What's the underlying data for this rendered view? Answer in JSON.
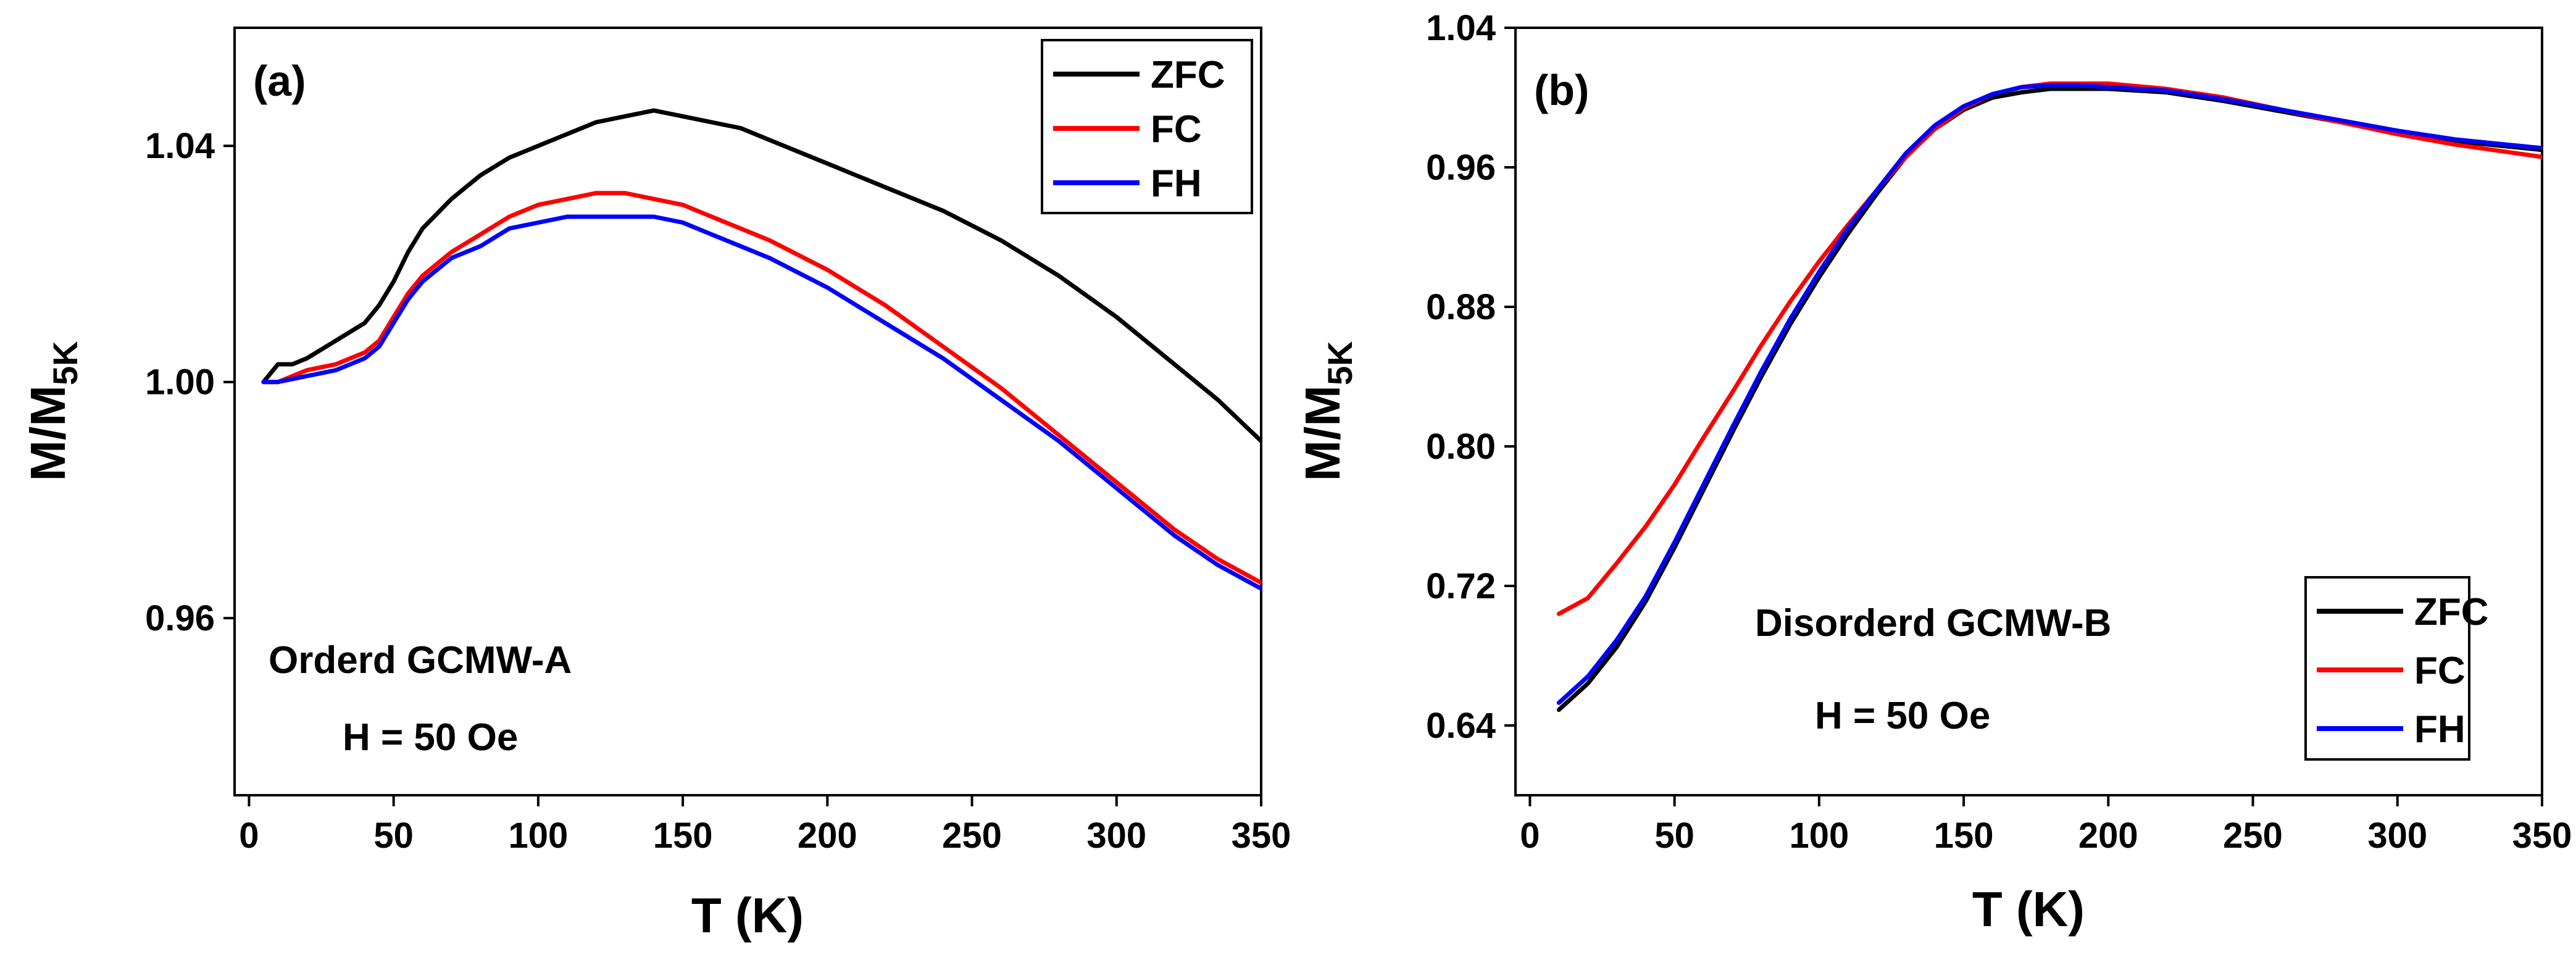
{
  "chart_data": [
    {
      "type": "line",
      "panel_label": "(a)",
      "annotations": [
        "Orderd GCMW-A",
        "H = 50 Oe"
      ],
      "xlabel": "T (K)",
      "ylabel_main": "M/M",
      "ylabel_sub": "5K",
      "xlim": [
        -5,
        350
      ],
      "ylim": [
        0.93,
        1.06
      ],
      "xticks": [
        0,
        50,
        100,
        150,
        200,
        250,
        300,
        350
      ],
      "yticks": [
        0.96,
        1.0,
        1.04
      ],
      "ytick_labels": [
        "0.96",
        "1.00",
        "1.04"
      ],
      "legend_position": "top-right",
      "series": [
        {
          "name": "ZFC",
          "color": "#000000",
          "x": [
            5,
            10,
            15,
            20,
            30,
            40,
            45,
            50,
            55,
            60,
            70,
            80,
            90,
            100,
            110,
            120,
            130,
            140,
            150,
            160,
            170,
            180,
            200,
            220,
            240,
            260,
            280,
            300,
            320,
            335,
            350
          ],
          "y": [
            1.0,
            1.003,
            1.003,
            1.004,
            1.007,
            1.01,
            1.013,
            1.017,
            1.022,
            1.026,
            1.031,
            1.035,
            1.038,
            1.04,
            1.042,
            1.044,
            1.045,
            1.046,
            1.045,
            1.044,
            1.043,
            1.041,
            1.037,
            1.033,
            1.029,
            1.024,
            1.018,
            1.011,
            1.003,
            0.997,
            0.99
          ]
        },
        {
          "name": "FC",
          "color": "#ff0000",
          "x": [
            5,
            10,
            20,
            30,
            40,
            45,
            50,
            55,
            60,
            70,
            80,
            90,
            100,
            110,
            120,
            130,
            140,
            150,
            160,
            180,
            200,
            220,
            240,
            260,
            280,
            300,
            320,
            335,
            350
          ],
          "y": [
            1.0,
            1.0,
            1.002,
            1.003,
            1.005,
            1.007,
            1.011,
            1.015,
            1.018,
            1.022,
            1.025,
            1.028,
            1.03,
            1.031,
            1.032,
            1.032,
            1.031,
            1.03,
            1.028,
            1.024,
            1.019,
            1.013,
            1.006,
            0.999,
            0.991,
            0.983,
            0.975,
            0.97,
            0.966
          ]
        },
        {
          "name": "FH",
          "color": "#0000ff",
          "x": [
            5,
            10,
            20,
            30,
            40,
            45,
            50,
            55,
            60,
            70,
            80,
            90,
            100,
            110,
            120,
            130,
            140,
            150,
            160,
            180,
            200,
            220,
            240,
            260,
            280,
            300,
            320,
            335,
            350
          ],
          "y": [
            1.0,
            1.0,
            1.001,
            1.002,
            1.004,
            1.006,
            1.01,
            1.014,
            1.017,
            1.021,
            1.023,
            1.026,
            1.027,
            1.028,
            1.028,
            1.028,
            1.028,
            1.027,
            1.025,
            1.021,
            1.016,
            1.01,
            1.004,
            0.997,
            0.99,
            0.982,
            0.974,
            0.969,
            0.965
          ]
        }
      ]
    },
    {
      "type": "line",
      "panel_label": "(b)",
      "annotations": [
        "Disorderd GCMW-B",
        "H = 50 Oe"
      ],
      "xlabel": "T (K)",
      "ylabel_main": "M/M",
      "ylabel_sub": "5K",
      "xlim": [
        -5,
        350
      ],
      "ylim": [
        0.6,
        1.04
      ],
      "xticks": [
        0,
        50,
        100,
        150,
        200,
        250,
        300,
        350
      ],
      "yticks": [
        0.64,
        0.72,
        0.8,
        0.88,
        0.96,
        1.04
      ],
      "ytick_labels": [
        "0.64",
        "0.72",
        "0.80",
        "0.88",
        "0.96",
        "1.04"
      ],
      "legend_position": "bottom-right",
      "series": [
        {
          "name": "ZFC",
          "color": "#000000",
          "x": [
            10,
            20,
            30,
            40,
            50,
            60,
            70,
            80,
            90,
            100,
            110,
            120,
            130,
            140,
            150,
            160,
            170,
            180,
            190,
            200,
            220,
            240,
            260,
            280,
            300,
            320,
            350
          ],
          "y": [
            0.649,
            0.664,
            0.685,
            0.711,
            0.742,
            0.775,
            0.808,
            0.84,
            0.87,
            0.897,
            0.922,
            0.945,
            0.966,
            0.982,
            0.993,
            1.0,
            1.003,
            1.005,
            1.005,
            1.005,
            1.003,
            0.998,
            0.992,
            0.986,
            0.98,
            0.975,
            0.97
          ]
        },
        {
          "name": "FC",
          "color": "#ff0000",
          "x": [
            10,
            20,
            30,
            40,
            50,
            60,
            70,
            80,
            90,
            100,
            110,
            120,
            130,
            140,
            150,
            160,
            170,
            180,
            190,
            200,
            220,
            240,
            260,
            280,
            300,
            320,
            350
          ],
          "y": [
            0.704,
            0.713,
            0.733,
            0.754,
            0.778,
            0.805,
            0.831,
            0.858,
            0.883,
            0.906,
            0.927,
            0.947,
            0.966,
            0.982,
            0.994,
            1.002,
            1.006,
            1.008,
            1.008,
            1.008,
            1.005,
            1.0,
            0.993,
            0.986,
            0.979,
            0.973,
            0.966
          ]
        },
        {
          "name": "FH",
          "color": "#0000ff",
          "x": [
            10,
            20,
            30,
            40,
            50,
            60,
            70,
            80,
            90,
            100,
            110,
            120,
            130,
            140,
            150,
            160,
            170,
            180,
            190,
            200,
            220,
            240,
            260,
            280,
            300,
            320,
            350
          ],
          "y": [
            0.653,
            0.668,
            0.689,
            0.714,
            0.745,
            0.778,
            0.811,
            0.843,
            0.873,
            0.9,
            0.925,
            0.947,
            0.968,
            0.984,
            0.995,
            1.002,
            1.006,
            1.007,
            1.007,
            1.006,
            1.004,
            0.999,
            0.993,
            0.987,
            0.981,
            0.976,
            0.971
          ]
        }
      ]
    }
  ]
}
